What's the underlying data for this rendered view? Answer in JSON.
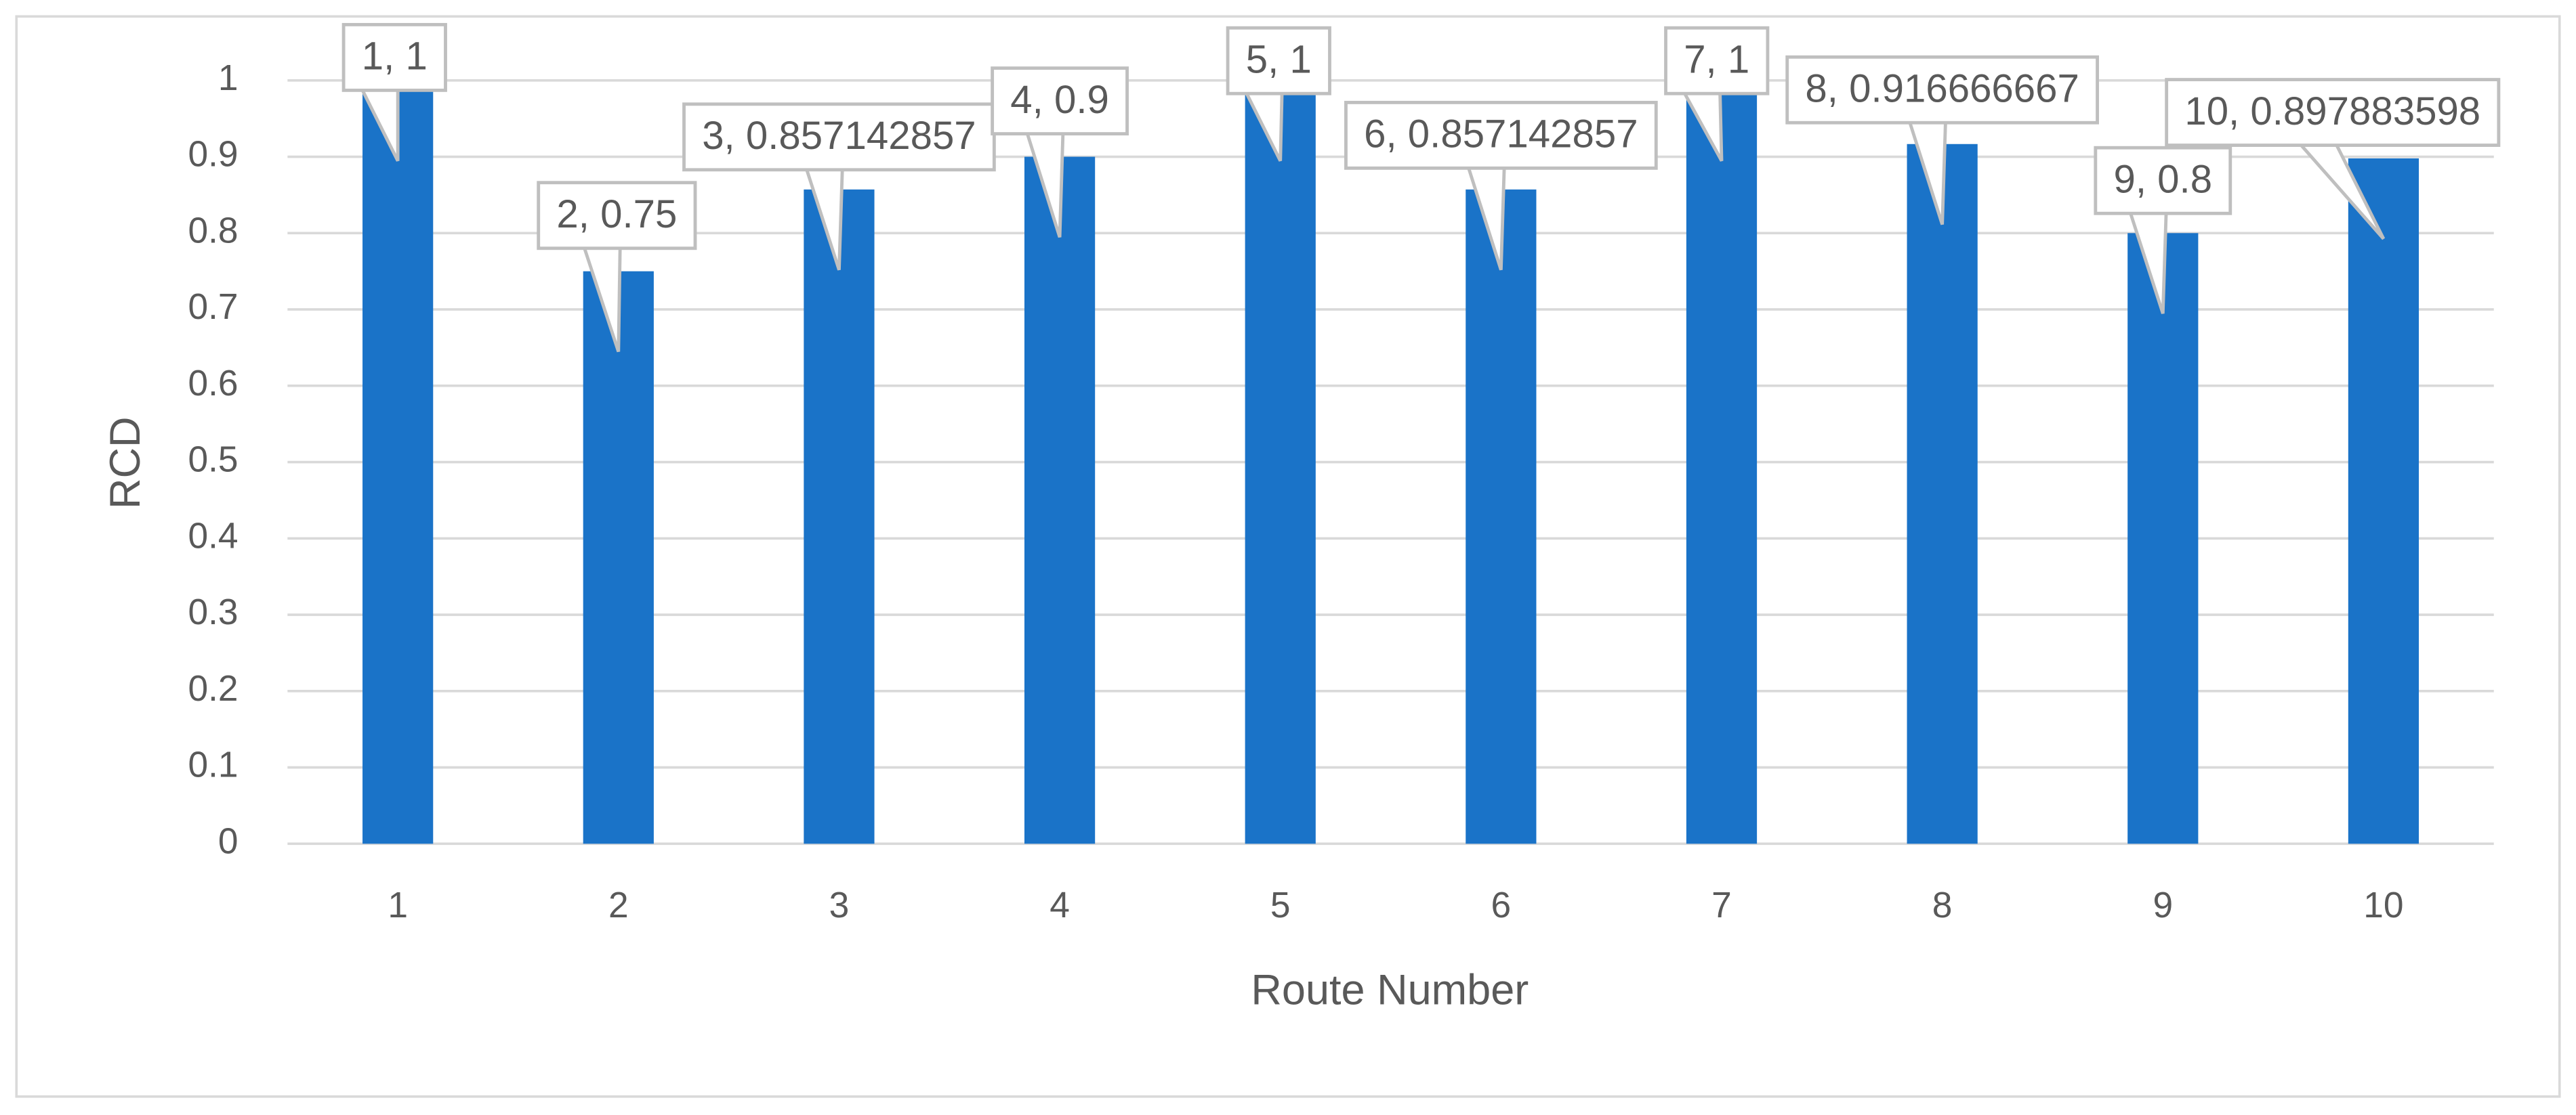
{
  "chart_data": {
    "type": "bar",
    "xlabel": "Route Number",
    "ylabel": "RCD",
    "categories": [
      "1",
      "2",
      "3",
      "4",
      "5",
      "6",
      "7",
      "8",
      "9",
      "10"
    ],
    "values": [
      1,
      0.75,
      0.857142857,
      0.9,
      1,
      0.857142857,
      1,
      0.916666667,
      0.8,
      0.897883598
    ],
    "value_labels": [
      "1, 1",
      "2, 0.75",
      "3, 0.857142857",
      "4, 0.9",
      "5, 1",
      "6, 0.857142857",
      "7, 1",
      "8, 0.916666667",
      "9, 0.8",
      "10, 0.897883598"
    ],
    "color": "#1a73c8",
    "ylim": [
      0,
      1
    ],
    "yticks": [
      0,
      0.1,
      0.2,
      0.3,
      0.4,
      0.5,
      0.6,
      0.7,
      0.8,
      0.9,
      1
    ],
    "grid": true
  }
}
